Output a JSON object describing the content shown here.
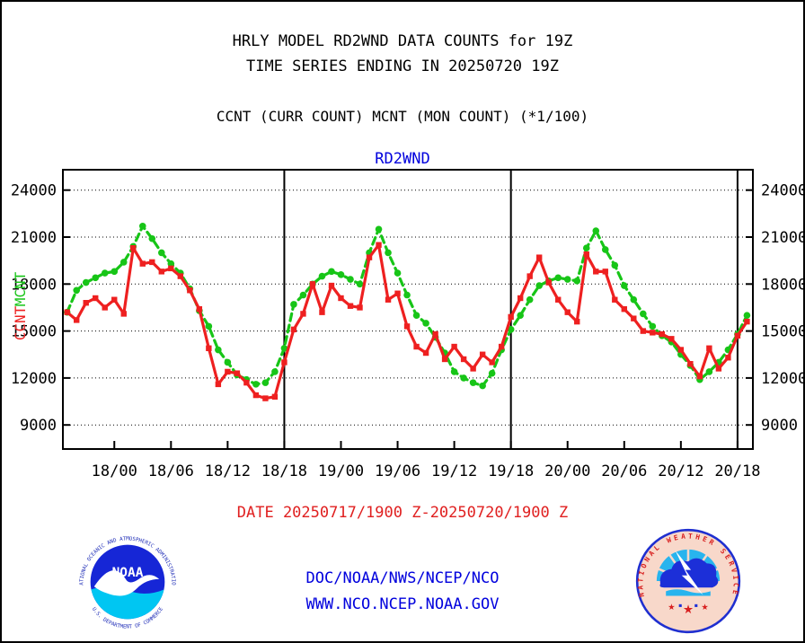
{
  "page": {
    "title_line1": "HRLY MODEL RD2WND DATA COUNTS for 19Z",
    "title_line2": "TIME SERIES ENDING IN 20250720 19Z",
    "subtitle": "CCNT (CURR COUNT) MCNT (MON COUNT) (*1/100)",
    "date_caption": "DATE 20250717/1900 Z-20250720/1900 Z",
    "link_line1": "DOC/NOAA/NWS/NCEP/NCO",
    "link_line2": "WWW.NCO.NCEP.NOAA.GOV"
  },
  "colors": {
    "ccnt_red": "#ee2020",
    "mcnt_green": "#17c517",
    "link_blue": "#0000dd",
    "axis_black": "#000000",
    "noaa_blue": "#1626d6",
    "noaa_cyan": "#00c6f2",
    "nws_pink": "#f8d8ca",
    "nws_blue": "#1c2fd8",
    "nws_cyan": "#28b4ee",
    "nws_red": "#d82020"
  },
  "logos": {
    "noaa": {
      "ring_text_top": "NATIONAL OCEANIC AND ATMOSPHERIC ADMINISTRATION",
      "ring_text_bottom": "U.S. DEPARTMENT OF COMMERCE",
      "center_text": "NOAA"
    },
    "nws": {
      "ring_text": "NATIONAL WEATHER SERVICE"
    }
  },
  "chart_data": {
    "type": "line",
    "title": "RD2WND",
    "xlabel": "",
    "ylabel": "",
    "grid": "horizontal-dotted",
    "legend_position": "left-axis-rotated",
    "yticks": [
      9000,
      12000,
      15000,
      18000,
      21000,
      24000
    ],
    "ylim": [
      7470,
      25300
    ],
    "xtick_labels": [
      "18/00",
      "18/06",
      "18/12",
      "18/18",
      "19/00",
      "19/06",
      "19/12",
      "19/18",
      "20/00",
      "20/06",
      "20/12",
      "20/18"
    ],
    "xtick_hours": [
      5,
      11,
      17,
      23,
      29,
      35,
      41,
      47,
      53,
      59,
      65,
      71
    ],
    "day_separator_hours": [
      23,
      47,
      71
    ],
    "x": [
      "17/19",
      "17/20",
      "17/21",
      "17/22",
      "17/23",
      "18/00",
      "18/01",
      "18/02",
      "18/03",
      "18/04",
      "18/05",
      "18/06",
      "18/07",
      "18/08",
      "18/09",
      "18/10",
      "18/11",
      "18/12",
      "18/13",
      "18/14",
      "18/15",
      "18/16",
      "18/17",
      "18/18",
      "18/19",
      "18/20",
      "18/21",
      "18/22",
      "18/23",
      "19/00",
      "19/01",
      "19/02",
      "19/03",
      "19/04",
      "19/05",
      "19/06",
      "19/07",
      "19/08",
      "19/09",
      "19/10",
      "19/11",
      "19/12",
      "19/13",
      "19/14",
      "19/15",
      "19/16",
      "19/17",
      "19/18",
      "19/19",
      "19/20",
      "19/21",
      "19/22",
      "19/23",
      "20/00",
      "20/01",
      "20/02",
      "20/03",
      "20/04",
      "20/05",
      "20/06",
      "20/07",
      "20/08",
      "20/09",
      "20/10",
      "20/11",
      "20/12",
      "20/13",
      "20/14",
      "20/15",
      "20/16",
      "20/17",
      "20/18",
      "20/19"
    ],
    "series": [
      {
        "name": "MCNT",
        "color": "#17c517",
        "style": "dashed",
        "marker": "circle",
        "values": [
          16200,
          17600,
          18100,
          18400,
          18700,
          18800,
          19400,
          20400,
          21700,
          20900,
          20000,
          19300,
          18700,
          17700,
          16300,
          15300,
          13800,
          13000,
          12200,
          11900,
          11600,
          11700,
          12400,
          13900,
          16700,
          17300,
          18000,
          18500,
          18800,
          18600,
          18300,
          18000,
          20000,
          21500,
          20000,
          18700,
          17300,
          16000,
          15500,
          14600,
          13600,
          12400,
          12000,
          11700,
          11500,
          12300,
          13800,
          15100,
          16000,
          17000,
          17900,
          18200,
          18400,
          18300,
          18200,
          20300,
          21400,
          20200,
          19200,
          17900,
          17000,
          16100,
          15300,
          14700,
          14300,
          13500,
          12800,
          11900,
          12400,
          13000,
          13800,
          14800,
          16000
        ]
      },
      {
        "name": "CCNT",
        "color": "#ee2020",
        "style": "solid",
        "marker": "square",
        "values": [
          16200,
          15700,
          16800,
          17100,
          16500,
          17000,
          16100,
          20300,
          19300,
          19400,
          18800,
          19000,
          18500,
          17600,
          16400,
          13900,
          11600,
          12400,
          12300,
          11700,
          10900,
          10700,
          10800,
          13000,
          15100,
          16100,
          18000,
          16200,
          17900,
          17100,
          16600,
          16500,
          19700,
          20500,
          17000,
          17400,
          15300,
          14000,
          13600,
          14800,
          13200,
          14000,
          13200,
          12600,
          13500,
          13000,
          14000,
          15900,
          17100,
          18500,
          19700,
          18100,
          17000,
          16200,
          15600,
          19900,
          18800,
          18800,
          17000,
          16400,
          15800,
          15000,
          14900,
          14800,
          14500,
          13800,
          12900,
          12100,
          13900,
          12600,
          13300,
          14700,
          15600
        ]
      }
    ]
  }
}
